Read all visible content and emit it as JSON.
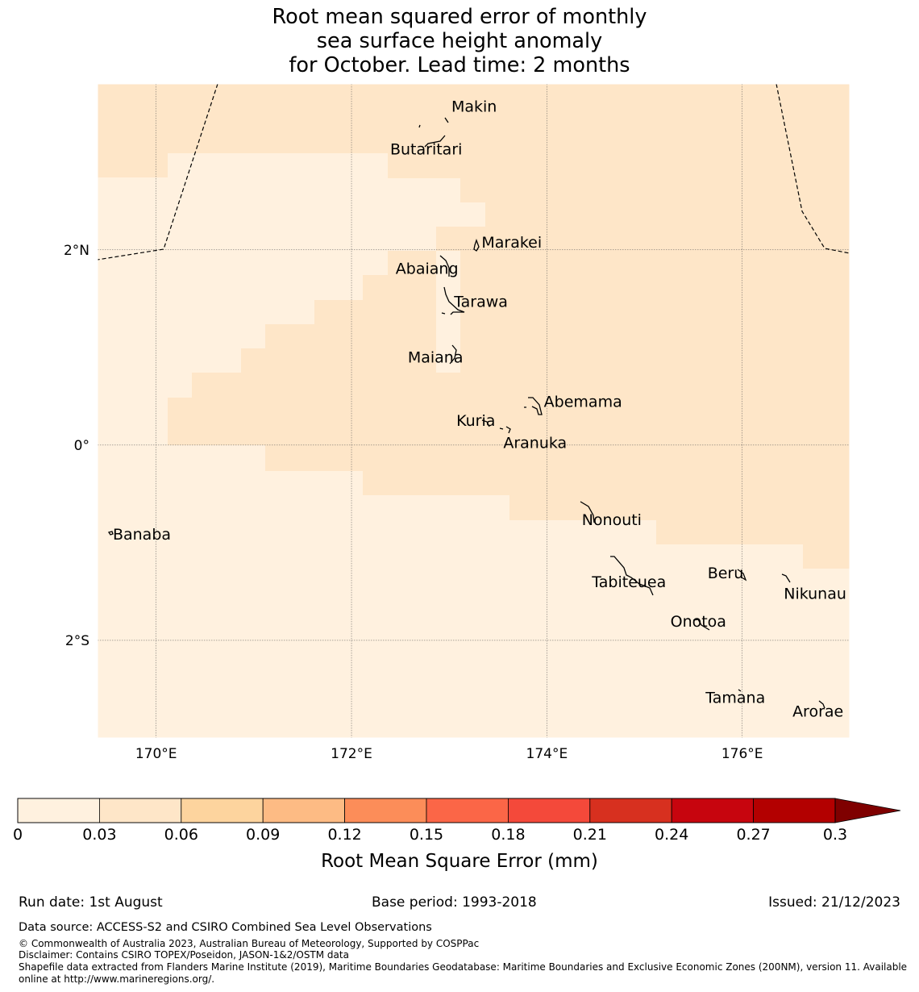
{
  "title": {
    "line1": "Root mean squared error of monthly",
    "line2": "sea surface height anomaly",
    "line3": "for October. Lead time: 2 months"
  },
  "map": {
    "lon_labels": [
      "170°E",
      "172°E",
      "174°E",
      "176°E"
    ],
    "lat_labels": [
      "2°N",
      "0°",
      "2°S"
    ],
    "extent": {
      "lon_min": 169.4,
      "lon_max": 177.1,
      "lat_min": -3.0,
      "lat_max": 3.7
    },
    "fill_classes": {
      "low": "0–0.03",
      "high": "0.03–0.06"
    },
    "islands": [
      {
        "name": "Makin",
        "lon": 172.99,
        "lat": 3.38
      },
      {
        "name": "Butaritari",
        "lon": 172.8,
        "lat": 3.07
      },
      {
        "name": "Marakei",
        "lon": 173.29,
        "lat": 2.0
      },
      {
        "name": "Abaiang",
        "lon": 172.98,
        "lat": 1.83
      },
      {
        "name": "Tarawa",
        "lon": 173.0,
        "lat": 1.4
      },
      {
        "name": "Maiana",
        "lon": 173.03,
        "lat": 0.93
      },
      {
        "name": "Abemama",
        "lon": 173.92,
        "lat": 0.4
      },
      {
        "name": "Kuria",
        "lon": 173.42,
        "lat": 0.22
      },
      {
        "name": "Aranuka",
        "lon": 173.62,
        "lat": 0.17
      },
      {
        "name": "Nonouti",
        "lon": 174.44,
        "lat": -0.66
      },
      {
        "name": "Banaba",
        "lon": 169.54,
        "lat": -0.87
      },
      {
        "name": "Tabiteuea",
        "lon": 174.8,
        "lat": -1.3
      },
      {
        "name": "Beru",
        "lon": 176.0,
        "lat": -1.33
      },
      {
        "name": "Nikunau",
        "lon": 176.45,
        "lat": -1.37
      },
      {
        "name": "Onotoa",
        "lon": 175.57,
        "lat": -1.82
      },
      {
        "name": "Tamana",
        "lon": 175.98,
        "lat": -2.5
      },
      {
        "name": "Arorae",
        "lon": 176.82,
        "lat": -2.64
      }
    ]
  },
  "colorbar": {
    "label": "Root Mean Square Error (mm)",
    "ticks": [
      "0",
      "0.03",
      "0.06",
      "0.09",
      "0.12",
      "0.15",
      "0.18",
      "0.21",
      "0.24",
      "0.27",
      "0.3"
    ],
    "colors": [
      "#fff1df",
      "#fee6c8",
      "#fdd49e",
      "#fdbb84",
      "#fc8d59",
      "#fb6647",
      "#f4493a",
      "#d7301f",
      "#c7050e",
      "#b30000"
    ],
    "extend_color": "#7f0000"
  },
  "footer": {
    "run_date": "Run date: 1st August",
    "base_period": "Base period: 1993-2018",
    "issued": "Issued: 21/12/2023",
    "data_source": "Data source: ACCESS-S2 and CSIRO Combined Sea Level Observations",
    "copyright": "© Commonwealth of Australia 2023, Australian Bureau of Meteorology, Supported by COSPPac",
    "disclaimer": "Disclaimer: Contains CSIRO TOPEX/Poseidon, JASON-1&2/OSTM data",
    "shapefile_line1": "Shapefile data extracted from Flanders Marine Institute (2019), Maritime Boundaries Geodatabase: Maritime Boundaries and Exclusive Economic Zones (200NM), version 11. Available",
    "shapefile_line2": "online at http://www.marineregions.org/."
  }
}
